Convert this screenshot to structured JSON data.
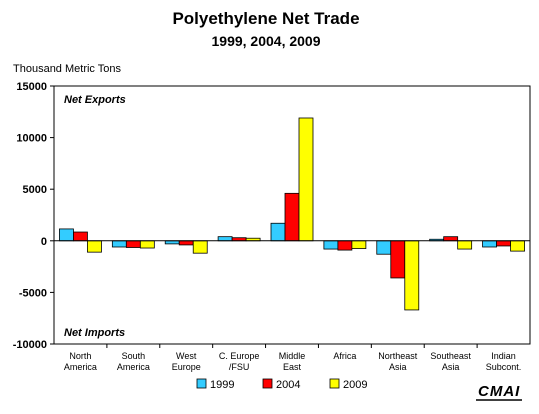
{
  "chart_data": {
    "type": "bar",
    "title": "Polyethylene Net Trade",
    "subtitle": "1999, 2004, 2009",
    "ylabel": "Thousand Metric Tons",
    "ylim": [
      -10000,
      15000
    ],
    "yticks": [
      15000,
      10000,
      5000,
      0,
      -5000,
      -10000
    ],
    "ytick_labels": [
      "15000",
      "10000",
      "5000",
      "0",
      "-5000",
      "-10000"
    ],
    "categories": [
      [
        "North",
        "America"
      ],
      [
        "South",
        "America"
      ],
      [
        "West",
        "Europe"
      ],
      [
        "C. Europe",
        "/FSU"
      ],
      [
        "Middle",
        "East"
      ],
      [
        "Africa"
      ],
      [
        "Northeast",
        "Asia"
      ],
      [
        "Southeast",
        "Asia"
      ],
      [
        "Indian",
        "Subcont."
      ]
    ],
    "series": [
      {
        "name": "1999",
        "color": "#33ccff",
        "values": [
          1150,
          -600,
          -300,
          400,
          1700,
          -800,
          -1300,
          150,
          -600
        ]
      },
      {
        "name": "2004",
        "color": "#ff0000",
        "values": [
          850,
          -650,
          -400,
          300,
          4600,
          -900,
          -3600,
          400,
          -500
        ]
      },
      {
        "name": "2009",
        "color": "#ffff00",
        "values": [
          -1100,
          -700,
          -1200,
          250,
          11900,
          -750,
          -6700,
          -800,
          -1000
        ]
      }
    ],
    "annotations": {
      "top": "Net Exports",
      "bottom": "Net Imports"
    },
    "grid": false,
    "legend_position": "bottom",
    "logo_text": "CMAI"
  }
}
